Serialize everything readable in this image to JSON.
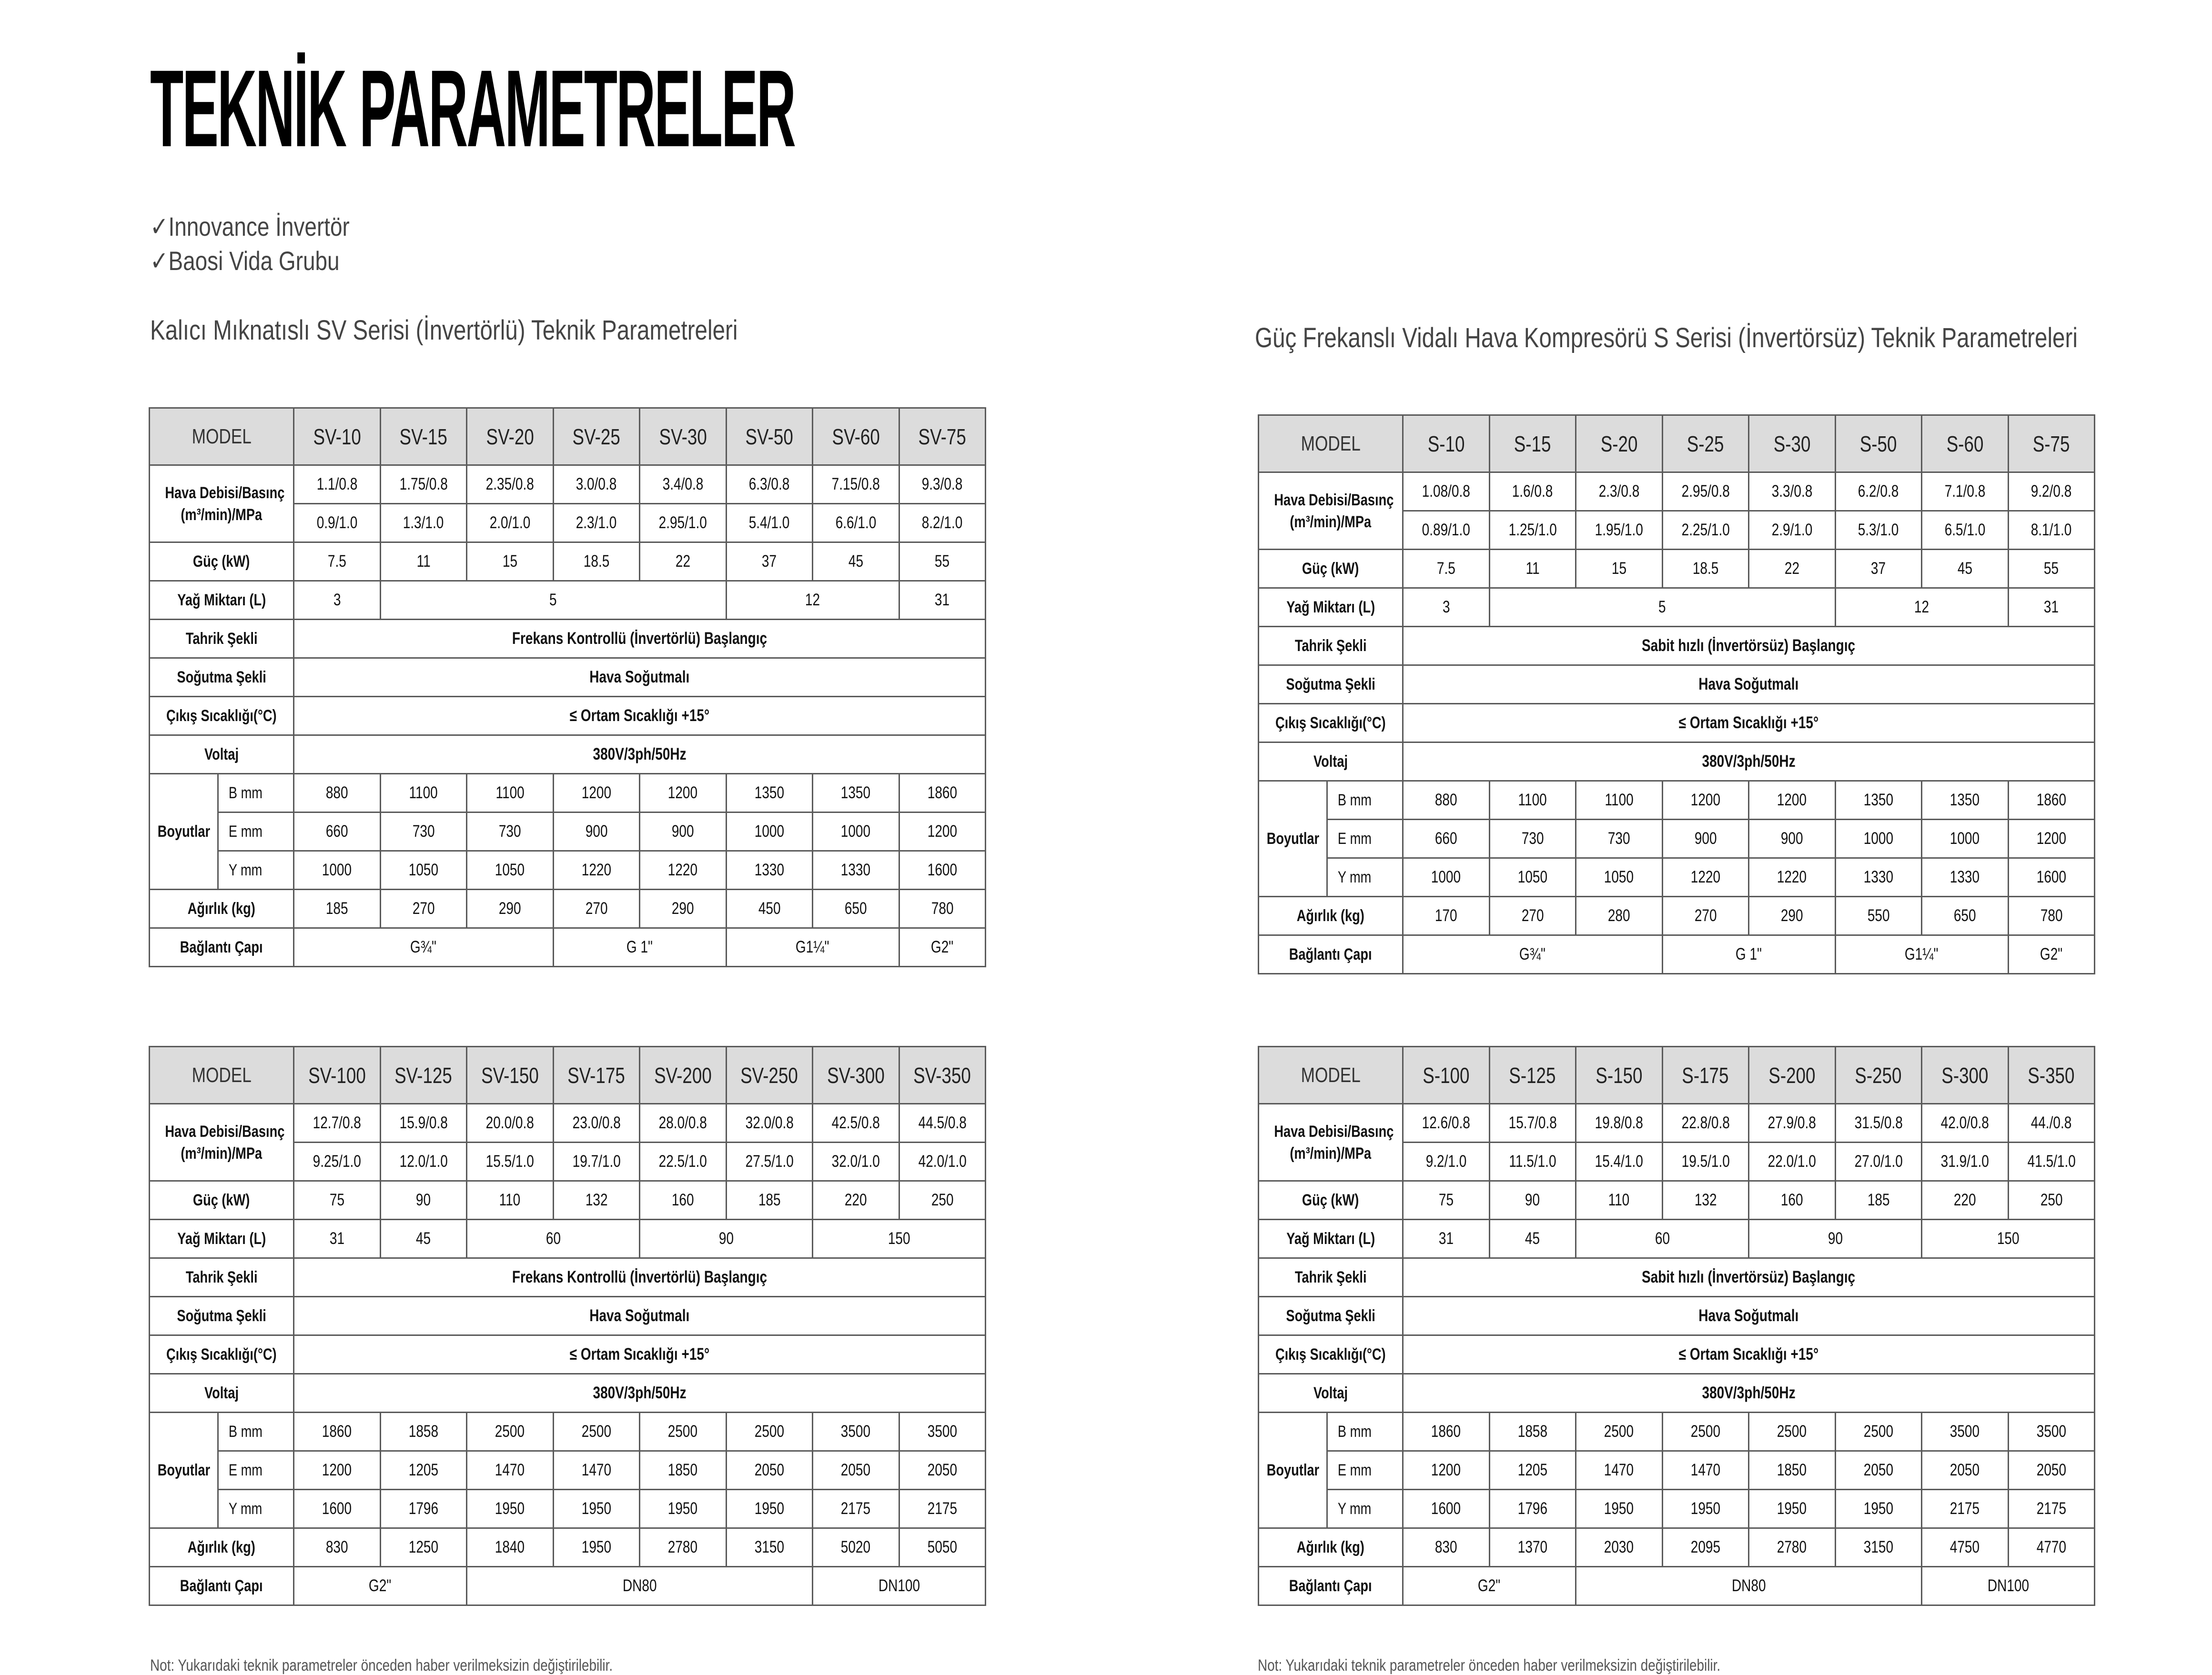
{
  "title": "TEKNİK PARAMETRELER",
  "features": [
    "✓Innovance İnvertör",
    "✓Baosi Vida Grubu"
  ],
  "left_section_title": "Kalıcı Mıknatıslı SV Serisi (İnvertörlü) Teknik Parametreleri",
  "right_section_title": "Güç Frekanslı Vidalı Hava Kompresörü S Serisi (İnvertörsüz) Teknik Parametreleri",
  "note": "Not: Yukarıdaki teknik parametreler önceden haber verilmeksizin değiştirilebilir.",
  "colors": {
    "header_bg": "#dcdcdc",
    "border": "#5a5a5a"
  },
  "labels": {
    "model": "MODEL",
    "hava": "Hava Debisi/Basınç",
    "hava_unit": "(m³/min)/MPa",
    "guc": "Güç (kW)",
    "yag": "Yağ Miktarı (L)",
    "tahrik": "Tahrik Şekli",
    "sogutma": "Soğutma Şekli",
    "cikis": "Çıkış Sıcaklığı(°C)",
    "voltaj": "Voltaj",
    "boyutlar": "Boyutlar",
    "b": "B  mm",
    "e": "E mm",
    "y": "Y mm",
    "agirlik": "Ağırlık (kg)",
    "baglanti": "Bağlantı Çapı"
  },
  "tables": [
    {
      "models": [
        "SV-10",
        "SV-15",
        "SV-20",
        "SV-25",
        "SV-30",
        "SV-50",
        "SV-60",
        "SV-75"
      ],
      "hava_08": [
        "1.1/0.8",
        "1.75/0.8",
        "2.35/0.8",
        "3.0/0.8",
        "3.4/0.8",
        "6.3/0.8",
        "7.15/0.8",
        "9.3/0.8"
      ],
      "hava_10": [
        "0.9/1.0",
        "1.3/1.0",
        "2.0/1.0",
        "2.3/1.0",
        "2.95/1.0",
        "5.4/1.0",
        "6.6/1.0",
        "8.2/1.0"
      ],
      "guc": [
        "7.5",
        "11",
        "15",
        "18.5",
        "22",
        "37",
        "45",
        "55"
      ],
      "yag": [
        {
          "v": "3",
          "span": 1
        },
        {
          "v": "5",
          "span": 4
        },
        {
          "v": "12",
          "span": 2
        },
        {
          "v": "31",
          "span": 1
        }
      ],
      "tahrik": "Frekans Kontrollü (İnvertörlü) Başlangıç",
      "sogutma": "Hava Soğutmalı",
      "cikis": "≤ Ortam Sıcaklığı +15°",
      "voltaj": "380V/3ph/50Hz",
      "b": [
        "880",
        "1100",
        "1100",
        "1200",
        "1200",
        "1350",
        "1350",
        "1860"
      ],
      "e": [
        "660",
        "730",
        "730",
        "900",
        "900",
        "1000",
        "1000",
        "1200"
      ],
      "y": [
        "1000",
        "1050",
        "1050",
        "1220",
        "1220",
        "1330",
        "1330",
        "1600"
      ],
      "agirlik": [
        "185",
        "270",
        "290",
        "270",
        "290",
        "450",
        "650",
        "780"
      ],
      "baglanti": [
        {
          "v": "G¾\"",
          "span": 3
        },
        {
          "v": "G 1\"",
          "span": 2
        },
        {
          "v": "G1¼\"",
          "span": 2
        },
        {
          "v": "G2\"",
          "span": 1
        }
      ]
    },
    {
      "models": [
        "S-10",
        "S-15",
        "S-20",
        "S-25",
        "S-30",
        "S-50",
        "S-60",
        "S-75"
      ],
      "hava_08": [
        "1.08/0.8",
        "1.6/0.8",
        "2.3/0.8",
        "2.95/0.8",
        "3.3/0.8",
        "6.2/0.8",
        "7.1/0.8",
        "9.2/0.8"
      ],
      "hava_10": [
        "0.89/1.0",
        "1.25/1.0",
        "1.95/1.0",
        "2.25/1.0",
        "2.9/1.0",
        "5.3/1.0",
        "6.5/1.0",
        "8.1/1.0"
      ],
      "guc": [
        "7.5",
        "11",
        "15",
        "18.5",
        "22",
        "37",
        "45",
        "55"
      ],
      "yag": [
        {
          "v": "3",
          "span": 1
        },
        {
          "v": "5",
          "span": 4
        },
        {
          "v": "12",
          "span": 2
        },
        {
          "v": "31",
          "span": 1
        }
      ],
      "tahrik": "Sabit hızlı (İnvertörsüz) Başlangıç",
      "sogutma": "Hava Soğutmalı",
      "cikis": "≤ Ortam Sıcaklığı +15°",
      "voltaj": "380V/3ph/50Hz",
      "b": [
        "880",
        "1100",
        "1100",
        "1200",
        "1200",
        "1350",
        "1350",
        "1860"
      ],
      "e": [
        "660",
        "730",
        "730",
        "900",
        "900",
        "1000",
        "1000",
        "1200"
      ],
      "y": [
        "1000",
        "1050",
        "1050",
        "1220",
        "1220",
        "1330",
        "1330",
        "1600"
      ],
      "agirlik": [
        "170",
        "270",
        "280",
        "270",
        "290",
        "550",
        "650",
        "780"
      ],
      "baglanti": [
        {
          "v": "G¾\"",
          "span": 3
        },
        {
          "v": "G 1\"",
          "span": 2
        },
        {
          "v": "G1¼\"",
          "span": 2
        },
        {
          "v": "G2\"",
          "span": 1
        }
      ]
    },
    {
      "models": [
        "SV-100",
        "SV-125",
        "SV-150",
        "SV-175",
        "SV-200",
        "SV-250",
        "SV-300",
        "SV-350"
      ],
      "hava_08": [
        "12.7/0.8",
        "15.9/0.8",
        "20.0/0.8",
        "23.0/0.8",
        "28.0/0.8",
        "32.0/0.8",
        "42.5/0.8",
        "44.5/0.8"
      ],
      "hava_10": [
        "9.25/1.0",
        "12.0/1.0",
        "15.5/1.0",
        "19.7/1.0",
        "22.5/1.0",
        "27.5/1.0",
        "32.0/1.0",
        "42.0/1.0"
      ],
      "guc": [
        "75",
        "90",
        "110",
        "132",
        "160",
        "185",
        "220",
        "250"
      ],
      "yag": [
        {
          "v": "31",
          "span": 1
        },
        {
          "v": "45",
          "span": 1
        },
        {
          "v": "60",
          "span": 2
        },
        {
          "v": "90",
          "span": 2
        },
        {
          "v": "150",
          "span": 2
        }
      ],
      "tahrik": "Frekans Kontrollü (İnvertörlü) Başlangıç",
      "sogutma": "Hava Soğutmalı",
      "cikis": "≤ Ortam Sıcaklığı +15°",
      "voltaj": "380V/3ph/50Hz",
      "b": [
        "1860",
        "1858",
        "2500",
        "2500",
        "2500",
        "2500",
        "3500",
        "3500"
      ],
      "e": [
        "1200",
        "1205",
        "1470",
        "1470",
        "1850",
        "2050",
        "2050",
        "2050"
      ],
      "y": [
        "1600",
        "1796",
        "1950",
        "1950",
        "1950",
        "1950",
        "2175",
        "2175"
      ],
      "agirlik": [
        "830",
        "1250",
        "1840",
        "1950",
        "2780",
        "3150",
        "5020",
        "5050"
      ],
      "baglanti": [
        {
          "v": "G2\"",
          "span": 2
        },
        {
          "v": "DN80",
          "span": 4
        },
        {
          "v": "DN100",
          "span": 2
        }
      ]
    },
    {
      "models": [
        "S-100",
        "S-125",
        "S-150",
        "S-175",
        "S-200",
        "S-250",
        "S-300",
        "S-350"
      ],
      "hava_08": [
        "12.6/0.8",
        "15.7/0.8",
        "19.8/0.8",
        "22.8/0.8",
        "27.9/0.8",
        "31.5/0.8",
        "42.0/0.8",
        "44./0.8"
      ],
      "hava_10": [
        "9.2/1.0",
        "11.5/1.0",
        "15.4/1.0",
        "19.5/1.0",
        "22.0/1.0",
        "27.0/1.0",
        "31.9/1.0",
        "41.5/1.0"
      ],
      "guc": [
        "75",
        "90",
        "110",
        "132",
        "160",
        "185",
        "220",
        "250"
      ],
      "yag": [
        {
          "v": "31",
          "span": 1
        },
        {
          "v": "45",
          "span": 1
        },
        {
          "v": "60",
          "span": 2
        },
        {
          "v": "90",
          "span": 2
        },
        {
          "v": "150",
          "span": 2
        }
      ],
      "tahrik": "Sabit hızlı (İnvertörsüz) Başlangıç",
      "sogutma": "Hava Soğutmalı",
      "cikis": "≤ Ortam Sıcaklığı +15°",
      "voltaj": "380V/3ph/50Hz",
      "b": [
        "1860",
        "1858",
        "2500",
        "2500",
        "2500",
        "2500",
        "3500",
        "3500"
      ],
      "e": [
        "1200",
        "1205",
        "1470",
        "1470",
        "1850",
        "2050",
        "2050",
        "2050"
      ],
      "y": [
        "1600",
        "1796",
        "1950",
        "1950",
        "1950",
        "1950",
        "2175",
        "2175"
      ],
      "agirlik": [
        "830",
        "1370",
        "2030",
        "2095",
        "2780",
        "3150",
        "4750",
        "4770"
      ],
      "baglanti": [
        {
          "v": "G2\"",
          "span": 2
        },
        {
          "v": "DN80",
          "span": 4
        },
        {
          "v": "DN100",
          "span": 2
        }
      ]
    }
  ]
}
